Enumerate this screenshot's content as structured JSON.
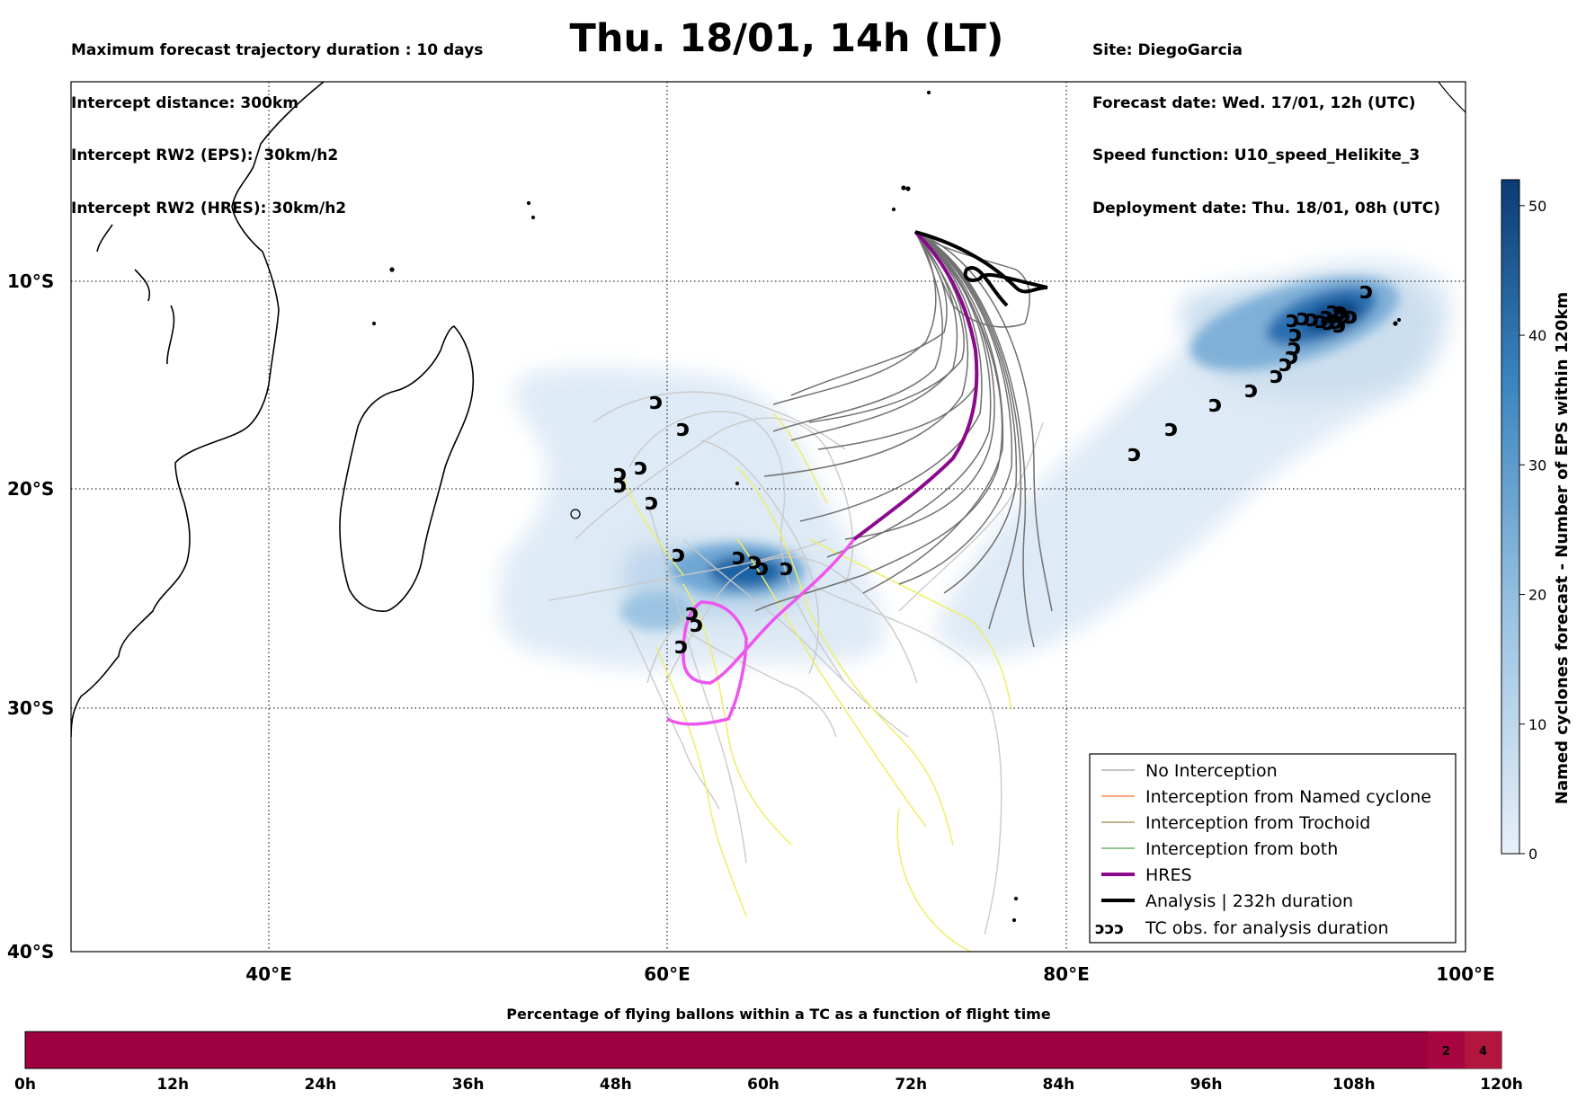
{
  "header_left": {
    "line1": "Maximum forecast trajectory duration : 10 days",
    "line2": "Intercept distance: 300km",
    "line3": "Intercept RW2 (EPS):  30km/h2",
    "line4": "Intercept RW2 (HRES): 30km/h2"
  },
  "title": "Thu. 18/01, 14h (LT)",
  "header_right": {
    "line1": "Site: DiegoGarcia",
    "line2": "Forecast date: Wed. 17/01, 12h (UTC)",
    "line3": "Speed function: U10_speed_Helikite_3",
    "line4": "Deployment date: Thu. 18/01, 08h (UTC)"
  },
  "map": {
    "lat_labels": [
      "10°S",
      "20°S",
      "30°S",
      "40°S"
    ],
    "lon_labels": [
      "40°E",
      "60°E",
      "80°E",
      "100°E"
    ],
    "extent": {
      "lon_min": 30,
      "lon_max": 100,
      "lat_min": -40,
      "lat_max": 0
    },
    "colors": {
      "hres": "#8b0a8b",
      "hres_forecast": "#ee55ee",
      "analysis": "#000000",
      "no_interception": "#707070",
      "eps_light": "#c8c8c8",
      "eps_yellow": "#eeee66",
      "named_cyclone": "#ff4500",
      "trochoid": "#7a6a1a",
      "both": "#228b22"
    },
    "tc_symbol": "ↄ"
  },
  "legend": {
    "items": [
      {
        "label": "No Interception",
        "color": "#888888",
        "width": 1
      },
      {
        "label": "Interception from Named cyclone",
        "color": "#ff4500",
        "width": 1
      },
      {
        "label": "Interception from Trochoid",
        "color": "#7a6a1a",
        "width": 1
      },
      {
        "label": "Interception from both",
        "color": "#228b22",
        "width": 1
      },
      {
        "label": "HRES",
        "color": "#8b0a8b",
        "width": 4
      },
      {
        "label": "Analysis | 232h duration",
        "color": "#000000",
        "width": 4
      }
    ],
    "tc_label": "TC obs. for analysis duration"
  },
  "colorbar": {
    "label": "Named cyclones forecast - Number of EPS within 120km",
    "ticks": [
      "0",
      "10",
      "20",
      "30",
      "40",
      "50"
    ],
    "min": 0,
    "max": 52,
    "color_low": "#e6eef8",
    "color_high": "#0a3a72"
  },
  "bottom_bar": {
    "title": "Percentage of flying ballons within a TC as a function of flight time",
    "ticks": [
      "0h",
      "12h",
      "24h",
      "36h",
      "48h",
      "60h",
      "72h",
      "84h",
      "96h",
      "108h",
      "120h"
    ],
    "base_color": "#9e0040",
    "cells": [
      {
        "label": "2",
        "start_h": 114,
        "end_h": 117,
        "color": "#a6053f"
      },
      {
        "label": "4",
        "start_h": 117,
        "end_h": 120,
        "color": "#b2163f"
      }
    ]
  }
}
